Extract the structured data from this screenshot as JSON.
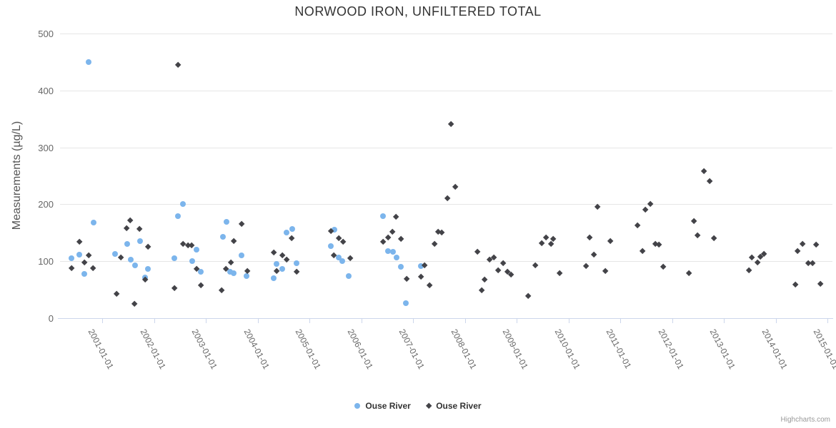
{
  "chart": {
    "credits_label": "Highcharts.com"
  },
  "colors": {
    "series_blue": "#7cb5ec",
    "series_dark": "#434348",
    "grid": "#e6e6e6",
    "axis": "#ccd6eb",
    "tick_text": "#666666",
    "title_text": "#333333"
  },
  "chart_data": {
    "type": "scatter",
    "title": "NORWOOD IRON, UNFILTERED TOTAL",
    "xlabel": "",
    "ylabel": "Measurements (µg/L)",
    "ylim": [
      0,
      500
    ],
    "yticks": [
      0,
      100,
      200,
      300,
      400,
      500
    ],
    "xlim": [
      2000.2,
      2015.0
    ],
    "grid": true,
    "legend_position": "bottom-center",
    "xticks": [
      {
        "x": 2001,
        "label": "2001-01-01"
      },
      {
        "x": 2002,
        "label": "2002-01-01"
      },
      {
        "x": 2003,
        "label": "2003-01-01"
      },
      {
        "x": 2004,
        "label": "2004-01-01"
      },
      {
        "x": 2005,
        "label": "2005-01-01"
      },
      {
        "x": 2006,
        "label": "2006-01-01"
      },
      {
        "x": 2007,
        "label": "2007-01-01"
      },
      {
        "x": 2008,
        "label": "2008-01-01"
      },
      {
        "x": 2009,
        "label": "2009-01-01"
      },
      {
        "x": 2010,
        "label": "2010-01-01"
      },
      {
        "x": 2011,
        "label": "2011-01-01"
      },
      {
        "x": 2012,
        "label": "2012-01-01"
      },
      {
        "x": 2013,
        "label": "2013-01-01"
      },
      {
        "x": 2014,
        "label": "2014-01-01"
      },
      {
        "x": 2015,
        "label": "2015-01-01"
      }
    ],
    "series": [
      {
        "name": "Ouse River",
        "marker": "circle",
        "color": "#7cb5ec",
        "points": [
          [
            2000.41,
            105
          ],
          [
            2000.56,
            111
          ],
          [
            2000.66,
            78
          ],
          [
            2000.74,
            450
          ],
          [
            2000.83,
            168
          ],
          [
            2001.25,
            113
          ],
          [
            2001.48,
            130
          ],
          [
            2001.55,
            103
          ],
          [
            2001.63,
            93
          ],
          [
            2001.73,
            135
          ],
          [
            2001.83,
            72
          ],
          [
            2001.88,
            87
          ],
          [
            2002.39,
            105
          ],
          [
            2002.46,
            179
          ],
          [
            2002.56,
            200
          ],
          [
            2002.74,
            100
          ],
          [
            2002.82,
            120
          ],
          [
            2002.9,
            81
          ],
          [
            2003.33,
            143
          ],
          [
            2003.4,
            169
          ],
          [
            2003.47,
            82
          ],
          [
            2003.54,
            79
          ],
          [
            2003.69,
            110
          ],
          [
            2003.79,
            74
          ],
          [
            2004.31,
            70
          ],
          [
            2004.37,
            95
          ],
          [
            2004.48,
            86
          ],
          [
            2004.56,
            151
          ],
          [
            2004.67,
            157
          ],
          [
            2004.75,
            96
          ],
          [
            2005.41,
            126
          ],
          [
            2005.48,
            155
          ],
          [
            2005.57,
            107
          ],
          [
            2005.63,
            100
          ],
          [
            2005.76,
            74
          ],
          [
            2006.42,
            179
          ],
          [
            2006.52,
            118
          ],
          [
            2006.61,
            117
          ],
          [
            2006.68,
            106
          ],
          [
            2006.77,
            90
          ],
          [
            2006.86,
            26
          ],
          [
            2007.15,
            91
          ]
        ]
      },
      {
        "name": "Ouse River",
        "marker": "diamond",
        "color": "#434348",
        "points": [
          [
            2000.41,
            88
          ],
          [
            2000.56,
            134
          ],
          [
            2000.66,
            98
          ],
          [
            2000.74,
            110
          ],
          [
            2000.83,
            88
          ],
          [
            2001.28,
            42
          ],
          [
            2001.36,
            106
          ],
          [
            2001.47,
            158
          ],
          [
            2001.54,
            172
          ],
          [
            2001.63,
            25
          ],
          [
            2001.72,
            156
          ],
          [
            2001.83,
            67
          ],
          [
            2001.88,
            125
          ],
          [
            2002.39,
            53
          ],
          [
            2002.46,
            445
          ],
          [
            2002.56,
            130
          ],
          [
            2002.66,
            127
          ],
          [
            2002.72,
            127
          ],
          [
            2002.82,
            86
          ],
          [
            2002.9,
            58
          ],
          [
            2003.3,
            49
          ],
          [
            2003.39,
            86
          ],
          [
            2003.48,
            98
          ],
          [
            2003.54,
            135
          ],
          [
            2003.69,
            165
          ],
          [
            2003.8,
            83
          ],
          [
            2004.31,
            115
          ],
          [
            2004.37,
            83
          ],
          [
            2004.48,
            110
          ],
          [
            2004.56,
            103
          ],
          [
            2004.66,
            140
          ],
          [
            2004.75,
            81
          ],
          [
            2005.41,
            153
          ],
          [
            2005.47,
            110
          ],
          [
            2005.57,
            140
          ],
          [
            2005.65,
            134
          ],
          [
            2005.79,
            105
          ],
          [
            2006.42,
            134
          ],
          [
            2006.52,
            141
          ],
          [
            2006.6,
            151
          ],
          [
            2006.67,
            178
          ],
          [
            2006.77,
            139
          ],
          [
            2006.88,
            69
          ],
          [
            2007.15,
            72
          ],
          [
            2007.23,
            93
          ],
          [
            2007.32,
            57
          ],
          [
            2007.41,
            130
          ],
          [
            2007.48,
            151
          ],
          [
            2007.55,
            150
          ],
          [
            2007.66,
            210
          ],
          [
            2007.74,
            340
          ],
          [
            2007.81,
            230
          ],
          [
            2008.24,
            116
          ],
          [
            2008.32,
            49
          ],
          [
            2008.38,
            68
          ],
          [
            2008.48,
            102
          ],
          [
            2008.56,
            106
          ],
          [
            2008.64,
            84
          ],
          [
            2008.74,
            96
          ],
          [
            2008.82,
            81
          ],
          [
            2008.89,
            76
          ],
          [
            2009.22,
            38
          ],
          [
            2009.36,
            92
          ],
          [
            2009.48,
            131
          ],
          [
            2009.57,
            141
          ],
          [
            2009.66,
            130
          ],
          [
            2009.7,
            139
          ],
          [
            2009.83,
            79
          ],
          [
            2010.34,
            91
          ],
          [
            2010.41,
            141
          ],
          [
            2010.49,
            111
          ],
          [
            2010.56,
            195
          ],
          [
            2010.71,
            83
          ],
          [
            2010.81,
            135
          ],
          [
            2011.34,
            163
          ],
          [
            2011.43,
            118
          ],
          [
            2011.48,
            190
          ],
          [
            2011.58,
            200
          ],
          [
            2011.68,
            130
          ],
          [
            2011.75,
            129
          ],
          [
            2011.83,
            90
          ],
          [
            2012.32,
            79
          ],
          [
            2012.42,
            170
          ],
          [
            2012.49,
            145
          ],
          [
            2012.61,
            258
          ],
          [
            2012.72,
            240
          ],
          [
            2012.81,
            140
          ],
          [
            2013.48,
            84
          ],
          [
            2013.54,
            106
          ],
          [
            2013.65,
            97
          ],
          [
            2013.7,
            108
          ],
          [
            2013.77,
            112
          ],
          [
            2014.38,
            59
          ],
          [
            2014.43,
            118
          ],
          [
            2014.52,
            130
          ],
          [
            2014.63,
            96
          ],
          [
            2014.71,
            96
          ],
          [
            2014.78,
            129
          ],
          [
            2014.87,
            60
          ]
        ]
      }
    ]
  }
}
